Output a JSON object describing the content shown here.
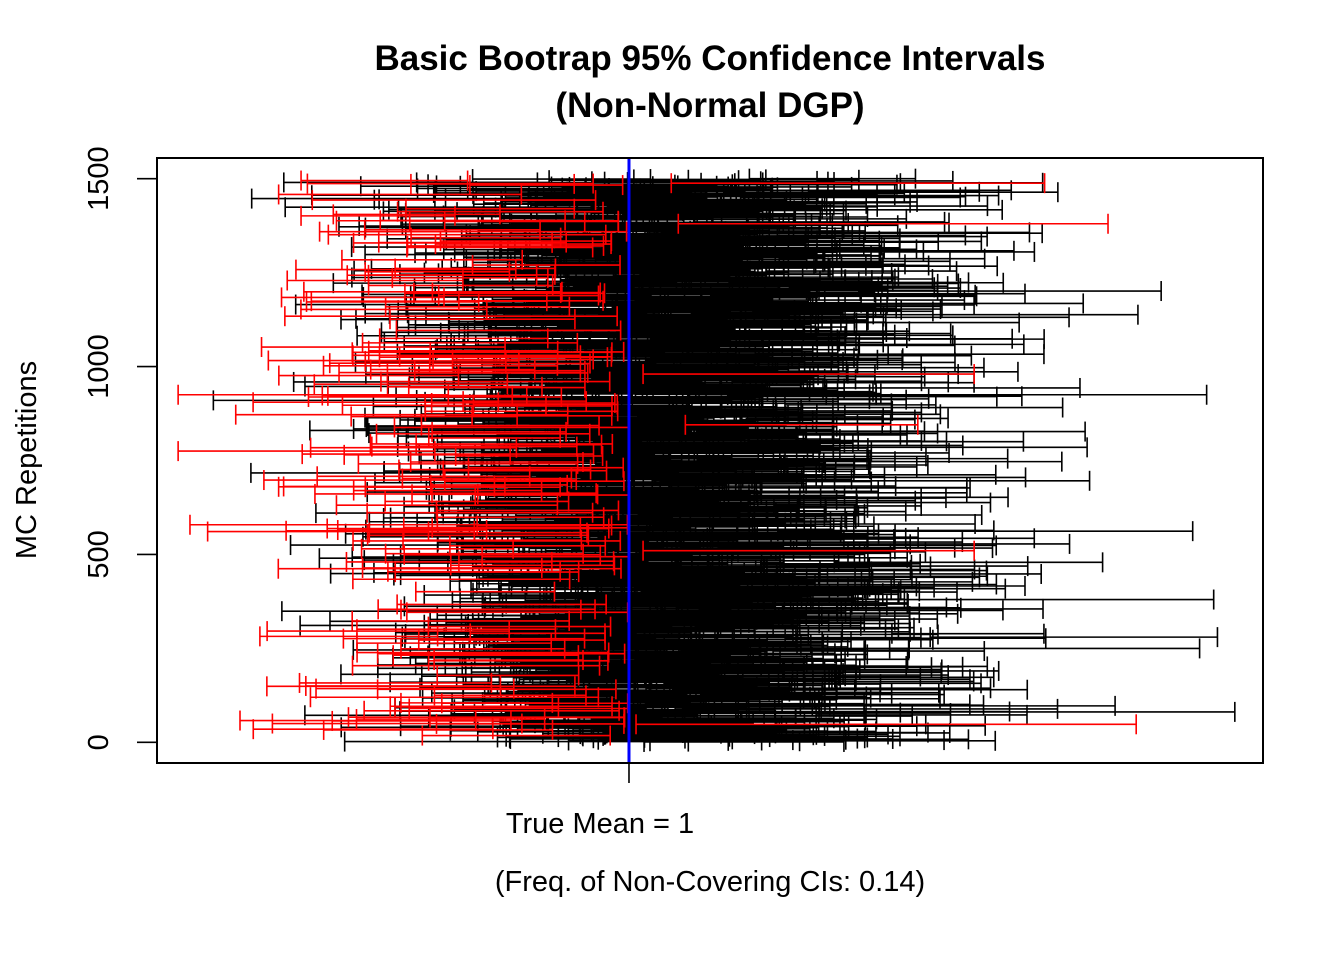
{
  "chart_data": {
    "type": "errorbar",
    "title_line1": "Basic Bootrap 95% Confidence Intervals",
    "title_line2": "(Non-Normal DGP)",
    "ylabel": "MC Repetitions",
    "xlabel": "(Freq. of Non-Covering CIs: 0.14)",
    "x_tick_label": "True Mean = 1",
    "true_mean": 1,
    "ylim": [
      -55,
      1555
    ],
    "y_ticks": [
      0,
      500,
      1000,
      1500
    ],
    "n_intervals": 1500,
    "frequency_non_covering": 0.14,
    "grid": false,
    "legend": "none",
    "colors": {
      "covering": "#000000",
      "non_covering": "#ff0000",
      "true_mean_line": "#0000ff"
    },
    "highlighted_non_covering_above": [
      {
        "rep": 1488,
        "lower": 1.06,
        "upper": 1.59
      },
      {
        "rep": 1380,
        "lower": 1.07,
        "upper": 1.68
      },
      {
        "rep": 980,
        "lower": 1.02,
        "upper": 1.49
      },
      {
        "rep": 845,
        "lower": 1.08,
        "upper": 1.41
      },
      {
        "rep": 510,
        "lower": 1.02,
        "upper": 1.49
      },
      {
        "rep": 48,
        "lower": 1.01,
        "upper": 1.72
      }
    ],
    "extreme_intervals": [
      {
        "rep": 910,
        "lower": 0.41,
        "upper": 0.78
      },
      {
        "rep": 1490,
        "lower": 0.51,
        "upper": 0.87
      },
      {
        "rep": 380,
        "lower": 1.35,
        "upper": 1.83
      },
      {
        "rep": 925,
        "lower": 1.28,
        "upper": 1.82
      },
      {
        "rep": 250,
        "lower": 1.37,
        "upper": 1.81
      }
    ]
  }
}
